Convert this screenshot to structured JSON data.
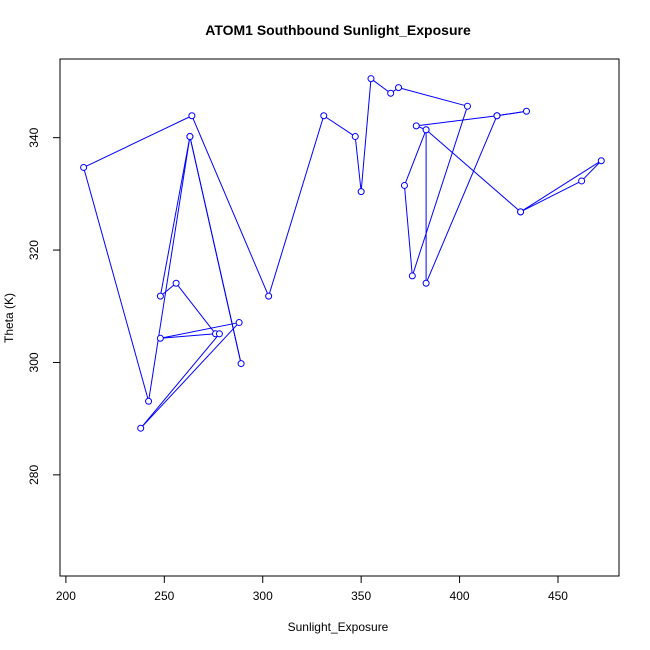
{
  "chart_data": {
    "type": "line",
    "title": "ATOM1 Southbound Sunlight_Exposure",
    "xlabel": "Sunlight_Exposure",
    "ylabel": "Theta (K)",
    "xlim": [
      197,
      481
    ],
    "ylim": [
      262,
      354
    ],
    "xticks": [
      200,
      250,
      300,
      350,
      400,
      450
    ],
    "yticks": [
      280,
      300,
      320,
      340
    ],
    "grid": false,
    "legend": "none",
    "series": [
      {
        "color": "#0000ff",
        "markers": "open-circle",
        "points": [
          {
            "x": 431,
            "y": 326.8
          },
          {
            "x": 462,
            "y": 332.3
          },
          {
            "x": 472,
            "y": 335.9
          },
          {
            "x": 431,
            "y": 326.8
          },
          {
            "x": 383,
            "y": 341.4
          },
          {
            "x": 378,
            "y": 342.1
          },
          {
            "x": 419,
            "y": 343.9
          },
          {
            "x": 434,
            "y": 344.7
          },
          {
            "x": 419,
            "y": 343.9
          },
          {
            "x": 383,
            "y": 314.1
          },
          {
            "x": 383,
            "y": 341.4
          },
          {
            "x": 372,
            "y": 331.5
          },
          {
            "x": 376,
            "y": 315.4
          },
          {
            "x": 404,
            "y": 345.6
          },
          {
            "x": 369,
            "y": 348.9
          },
          {
            "x": 365,
            "y": 347.9
          },
          {
            "x": 355,
            "y": 350.5
          },
          {
            "x": 350,
            "y": 330.4
          },
          {
            "x": 347,
            "y": 340.2
          },
          {
            "x": 331,
            "y": 343.9
          },
          {
            "x": 303,
            "y": 311.8
          },
          {
            "x": 264,
            "y": 343.9
          },
          {
            "x": 209,
            "y": 334.7
          },
          {
            "x": 242,
            "y": 293.1
          },
          {
            "x": 263,
            "y": 340.2
          },
          {
            "x": 289,
            "y": 299.8
          },
          {
            "x": 263,
            "y": 340.2
          },
          {
            "x": 248,
            "y": 311.8
          },
          {
            "x": 256,
            "y": 314.1
          },
          {
            "x": 276,
            "y": 305.1
          },
          {
            "x": 248,
            "y": 304.3
          },
          {
            "x": 288,
            "y": 307.1
          },
          {
            "x": 238,
            "y": 288.3
          },
          {
            "x": 278,
            "y": 305.1
          }
        ]
      }
    ]
  }
}
